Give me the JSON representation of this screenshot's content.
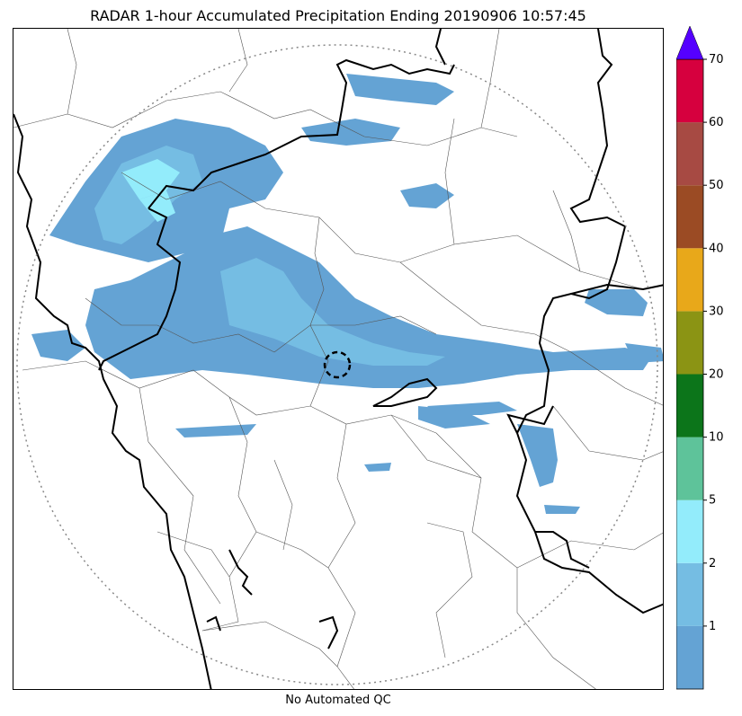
{
  "title": "RADAR 1-hour Accumulated Precipitation Ending 20190906 10:57:45",
  "footer": "No Automated QC",
  "colorbar": {
    "segments": [
      {
        "color": "#64a3d4"
      },
      {
        "color": "#75bde3"
      },
      {
        "color": "#93ecfb"
      },
      {
        "color": "#5ec39a"
      },
      {
        "color": "#0c751a"
      },
      {
        "color": "#8b9414"
      },
      {
        "color": "#e8a81a"
      },
      {
        "color": "#9b4b24"
      },
      {
        "color": "#a74a43"
      },
      {
        "color": "#d6003e"
      }
    ],
    "extend_color": "#5500ff",
    "tick_labels": [
      "1",
      "2",
      "5",
      "10",
      "20",
      "30",
      "40",
      "50",
      "60",
      "70"
    ]
  },
  "colors": {
    "light": "#64a3d4",
    "mid": "#75bde3",
    "high": "#93ecfb",
    "border": "#000000",
    "district": "#555555",
    "range_ring": "#888888"
  }
}
